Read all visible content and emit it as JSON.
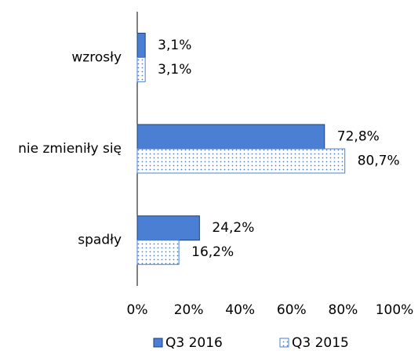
{
  "chart_data": {
    "type": "hbar",
    "categories": [
      "wzrosły",
      "nie zmieniły się",
      "spadły"
    ],
    "series": [
      {
        "name": "Q3 2016",
        "color": "#4a7fd4",
        "pattern": "solid",
        "values": [
          3.1,
          72.8,
          24.2
        ],
        "value_labels": [
          "3,1%",
          "72,8%",
          "24,2%"
        ]
      },
      {
        "name": "Q3 2015",
        "color": "#4a7fd4",
        "pattern": "dotted",
        "values": [
          3.1,
          80.7,
          16.2
        ],
        "value_labels": [
          "3,1%",
          "80,7%",
          "16,2%"
        ]
      }
    ],
    "xlim": [
      0,
      100
    ],
    "xticks": [
      {
        "value": 0,
        "label": "0%"
      },
      {
        "value": 20,
        "label": "20%"
      },
      {
        "value": 40,
        "label": "40%"
      },
      {
        "value": 60,
        "label": "60%"
      },
      {
        "value": 80,
        "label": "80%"
      },
      {
        "value": 100,
        "label": "100%"
      }
    ],
    "legend": "bottom"
  }
}
